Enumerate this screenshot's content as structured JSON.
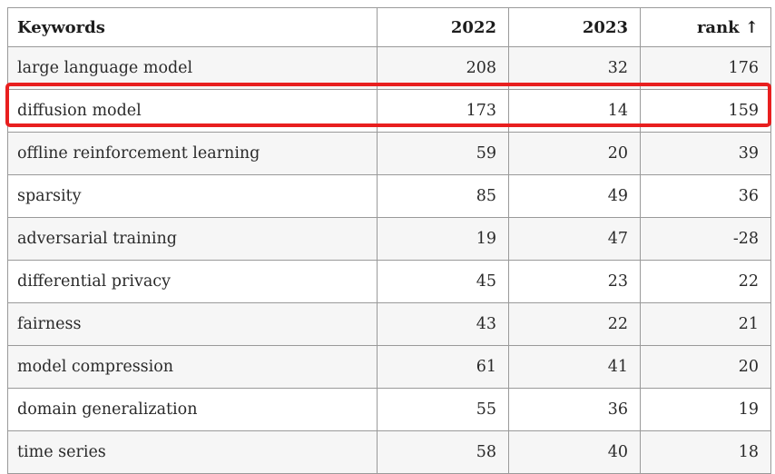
{
  "table": {
    "header": {
      "keywords_label": "Keywords",
      "col_2022_label": "2022",
      "col_2023_label": "2023",
      "rank_label": "rank ↑"
    },
    "rows": [
      {
        "keyword": "large language model",
        "y2022": 208,
        "y2023": 32,
        "rank": 176
      },
      {
        "keyword": "diffusion model",
        "y2022": 173,
        "y2023": 14,
        "rank": 159
      },
      {
        "keyword": "offline reinforcement learning",
        "y2022": 59,
        "y2023": 20,
        "rank": 39
      },
      {
        "keyword": "sparsity",
        "y2022": 85,
        "y2023": 49,
        "rank": 36
      },
      {
        "keyword": "adversarial training",
        "y2022": 19,
        "y2023": 47,
        "rank": -28
      },
      {
        "keyword": "differential privacy",
        "y2022": 45,
        "y2023": 23,
        "rank": 22
      },
      {
        "keyword": "fairness",
        "y2022": 43,
        "y2023": 22,
        "rank": 21
      },
      {
        "keyword": "model compression",
        "y2022": 61,
        "y2023": 41,
        "rank": 20
      },
      {
        "keyword": "domain generalization",
        "y2022": 55,
        "y2023": 36,
        "rank": 19
      },
      {
        "keyword": "time series",
        "y2022": 58,
        "y2023": 40,
        "rank": 18
      }
    ],
    "highlighted_row_keyword": "diffusion model"
  },
  "colors": {
    "highlight_border": "#e81f1f",
    "row_shade": "#f6f6f6",
    "grid_border": "#9a9a9a",
    "text": "#2a2a2a",
    "background": "#ffffff"
  }
}
